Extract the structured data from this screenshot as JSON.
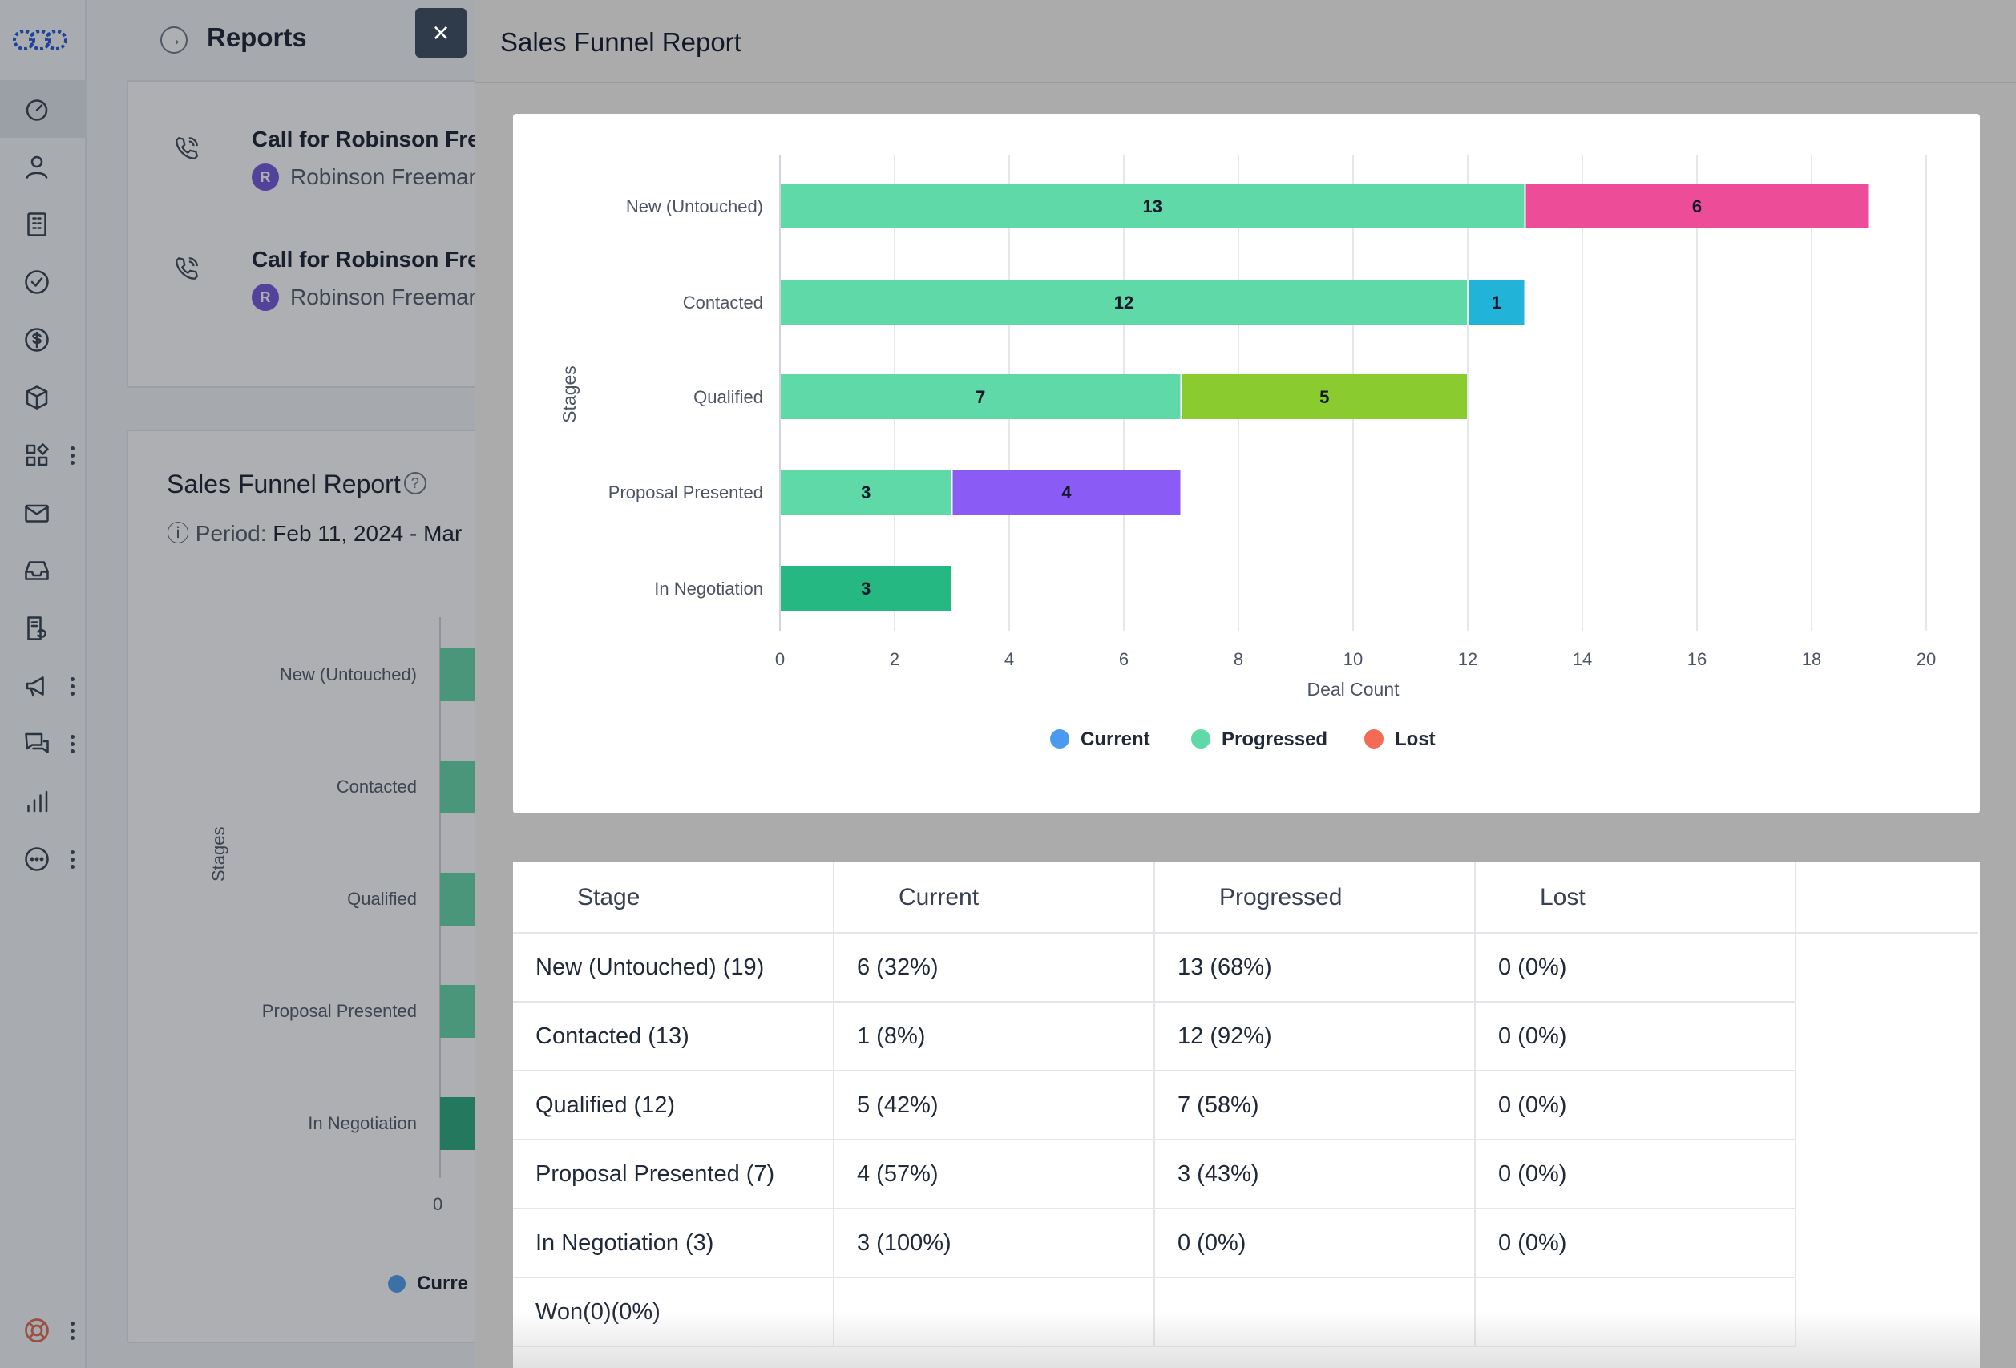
{
  "app": {
    "page_title": "Reports"
  },
  "sidebar": {
    "icons": [
      "dashboard-icon",
      "contacts-icon",
      "companies-icon",
      "tasks-icon",
      "deals-icon",
      "products-icon",
      "apps-icon",
      "email-icon",
      "inbox-icon",
      "documents-icon",
      "campaigns-icon",
      "conversations-icon",
      "reports-icon",
      "more-icon"
    ],
    "help_icon": "lifebuoy-icon"
  },
  "background": {
    "calls": [
      {
        "title": "Call for Robinson Freema",
        "avatar": "R",
        "contact": "Robinson Freemantle"
      },
      {
        "title": "Call for Robinson Freema",
        "avatar": "R",
        "contact": "Robinson Freemantle"
      }
    ],
    "report_title": "Sales Funnel Report",
    "period_label": "Period:",
    "period_value": "Feb 11, 2024 - Mar",
    "stages": [
      "New (Untouched)",
      "Contacted",
      "Qualified",
      "Proposal Presented",
      "In Negotiation"
    ],
    "y_label": "Stages",
    "x_zero": "0",
    "legend_partial": "Curre"
  },
  "modal": {
    "title": "Sales Funnel Report",
    "close_label": "×"
  },
  "chart_data": {
    "type": "bar",
    "orientation": "horizontal",
    "stacked": true,
    "categories": [
      "New (Untouched)",
      "Contacted",
      "Qualified",
      "Proposal Presented",
      "In Negotiation"
    ],
    "segments": [
      [
        {
          "value": 13,
          "color": "#5fd9a7"
        },
        {
          "value": 6,
          "color": "#ec4c98"
        }
      ],
      [
        {
          "value": 12,
          "color": "#5fd9a7"
        },
        {
          "value": 1,
          "color": "#22b3d8"
        }
      ],
      [
        {
          "value": 7,
          "color": "#5fd9a7"
        },
        {
          "value": 5,
          "color": "#8acb2f"
        }
      ],
      [
        {
          "value": 3,
          "color": "#5fd9a7"
        },
        {
          "value": 4,
          "color": "#8a5cf5"
        }
      ],
      [
        {
          "value": 3,
          "color": "#26b882"
        }
      ]
    ],
    "xlabel": "Deal Count",
    "ylabel": "Stages",
    "xlim": [
      0,
      20
    ],
    "xticks": [
      "0",
      "2",
      "4",
      "6",
      "8",
      "10",
      "12",
      "14",
      "16",
      "18",
      "20"
    ],
    "grid": true,
    "legend": [
      {
        "name": "Current",
        "color": "#4a9af0"
      },
      {
        "name": "Progressed",
        "color": "#5fd9a7"
      },
      {
        "name": "Lost",
        "color": "#f36b57"
      }
    ],
    "legend_position": "bottom-center"
  },
  "table": {
    "headers": [
      "Stage",
      "Current",
      "Progressed",
      "Lost",
      ""
    ],
    "rows": [
      [
        "New (Untouched) (19)",
        "6 (32%)",
        "13 (68%)",
        "0 (0%)"
      ],
      [
        "Contacted (13)",
        "1 (8%)",
        "12 (92%)",
        "0 (0%)"
      ],
      [
        "Qualified (12)",
        "5 (42%)",
        "7 (58%)",
        "0 (0%)"
      ],
      [
        "Proposal Presented (7)",
        "4 (57%)",
        "3 (43%)",
        "0 (0%)"
      ],
      [
        "In Negotiation (3)",
        "3 (100%)",
        "0 (0%)",
        "0 (0%)"
      ],
      [
        "Won(0)(0%)",
        "",
        "",
        ""
      ]
    ]
  }
}
